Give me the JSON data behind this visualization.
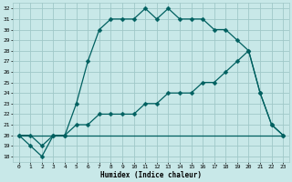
{
  "xlabel": "Humidex (Indice chaleur)",
  "bg_color": "#c8e8e8",
  "grid_color": "#a0c8c8",
  "line_color": "#006060",
  "xlim": [
    -0.5,
    23.5
  ],
  "ylim": [
    17.5,
    32.5
  ],
  "xticks": [
    0,
    1,
    2,
    3,
    4,
    5,
    6,
    7,
    8,
    9,
    10,
    11,
    12,
    13,
    14,
    15,
    16,
    17,
    18,
    19,
    20,
    21,
    22,
    23
  ],
  "yticks": [
    18,
    19,
    20,
    21,
    22,
    23,
    24,
    25,
    26,
    27,
    28,
    29,
    30,
    31,
    32
  ],
  "line1_x": [
    0,
    1,
    2,
    3,
    4,
    5,
    6,
    7,
    8,
    9,
    10,
    11,
    12,
    13,
    14,
    15,
    16,
    17,
    18,
    19,
    20,
    21,
    22,
    23
  ],
  "line1_y": [
    20,
    19,
    18,
    20,
    20,
    23,
    27,
    30,
    31,
    31,
    31,
    32,
    31,
    32,
    31,
    31,
    31,
    30,
    30,
    29,
    28,
    24,
    21,
    20
  ],
  "line2_x": [
    0,
    3,
    20,
    23
  ],
  "line2_y": [
    20,
    20,
    20,
    20
  ],
  "line3_x": [
    0,
    1,
    2,
    3,
    4,
    5,
    6,
    7,
    8,
    9,
    10,
    11,
    12,
    13,
    14,
    15,
    16,
    17,
    18,
    19,
    20,
    21,
    22,
    23
  ],
  "line3_y": [
    20,
    20,
    19,
    20,
    20,
    21,
    21,
    22,
    22,
    22,
    22,
    23,
    23,
    24,
    24,
    24,
    25,
    25,
    26,
    27,
    28,
    24,
    21,
    20
  ],
  "markersize": 2.5,
  "linewidth": 0.9,
  "tick_fontsize": 4.5,
  "xlabel_fontsize": 5.5
}
